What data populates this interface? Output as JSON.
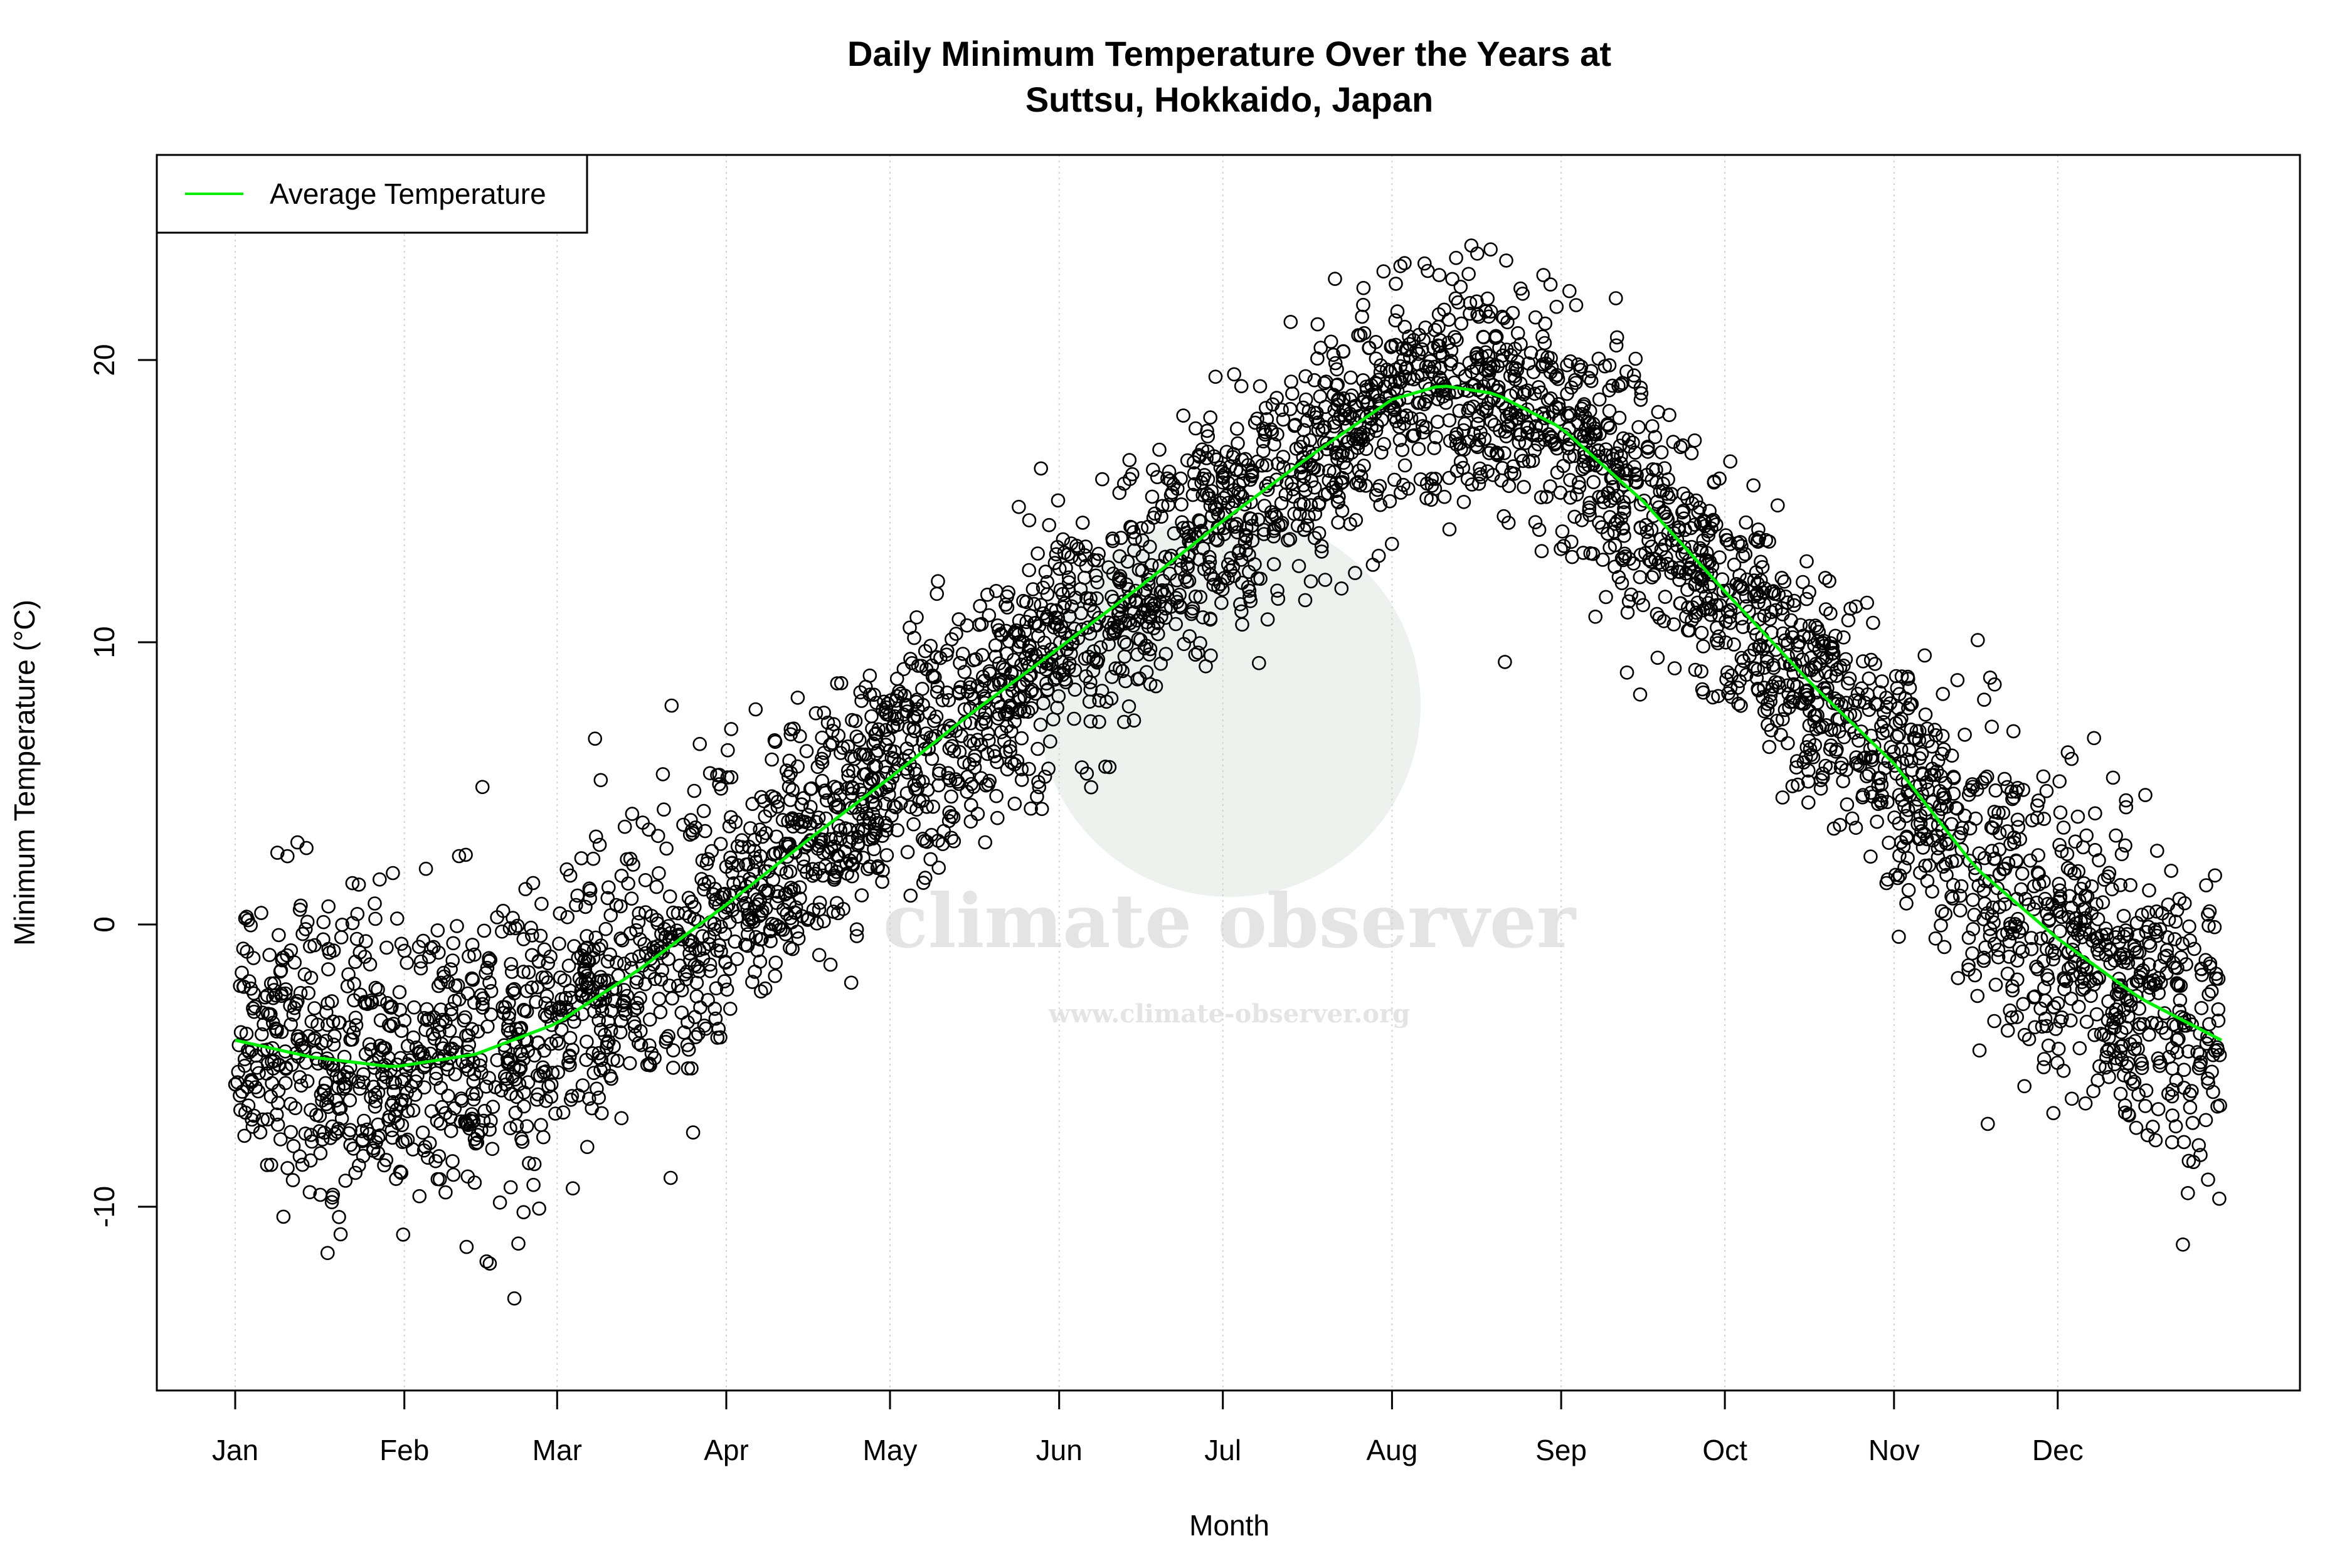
{
  "chart_data": {
    "type": "scatter",
    "title": "Daily Minimum Temperature Over the Years at\nSuttsu, Hokkaido, Japan",
    "title_lines": [
      "Daily Minimum Temperature Over the Years at",
      "Suttsu, Hokkaido, Japan"
    ],
    "xlabel": "Month",
    "ylabel": "Minimum Temperature (°C)",
    "x_unit": "day of year",
    "xlim": [
      1,
      365
    ],
    "ylim": [
      -16.5,
      27.3
    ],
    "x_ticks": [
      {
        "label": "Jan",
        "day": 1
      },
      {
        "label": "Feb",
        "day": 32
      },
      {
        "label": "Mar",
        "day": 60
      },
      {
        "label": "Apr",
        "day": 91
      },
      {
        "label": "May",
        "day": 121
      },
      {
        "label": "Jun",
        "day": 152
      },
      {
        "label": "Jul",
        "day": 182
      },
      {
        "label": "Aug",
        "day": 213
      },
      {
        "label": "Sep",
        "day": 244
      },
      {
        "label": "Oct",
        "day": 274
      },
      {
        "label": "Nov",
        "day": 305
      },
      {
        "label": "Dec",
        "day": 335
      }
    ],
    "y_ticks": [
      -10,
      0,
      10,
      20
    ],
    "grid": "vertical dotted at month ticks",
    "legend": {
      "position": "top-left",
      "entries": [
        {
          "label": "Average Temperature",
          "color": "#00ee00"
        }
      ]
    },
    "series": [
      {
        "name": "Average Temperature",
        "kind": "line",
        "color": "#00ee00",
        "x": [
          1,
          15,
          30,
          45,
          60,
          75,
          91,
          106,
          121,
          136,
          152,
          167,
          182,
          198,
          213,
          222,
          232,
          244,
          259,
          274,
          290,
          305,
          320,
          335,
          350,
          365
        ],
        "y": [
          -4.1,
          -4.7,
          -5.05,
          -4.6,
          -3.5,
          -1.6,
          0.7,
          3.0,
          5.2,
          7.5,
          9.8,
          12.0,
          14.3,
          16.6,
          18.6,
          19.1,
          18.8,
          17.6,
          15.0,
          11.8,
          8.5,
          5.7,
          2.0,
          -0.5,
          -2.6,
          -4.1
        ]
      },
      {
        "kind": "scatter",
        "marker": "open circle",
        "color": "#000000",
        "description_of_values": "daily observations scattered around the average, roughly ±5 °C (min about -15, max about 25.6)"
      }
    ]
  },
  "watermark": {
    "brand": "climate observer",
    "url": "www.climate-observer.org"
  }
}
